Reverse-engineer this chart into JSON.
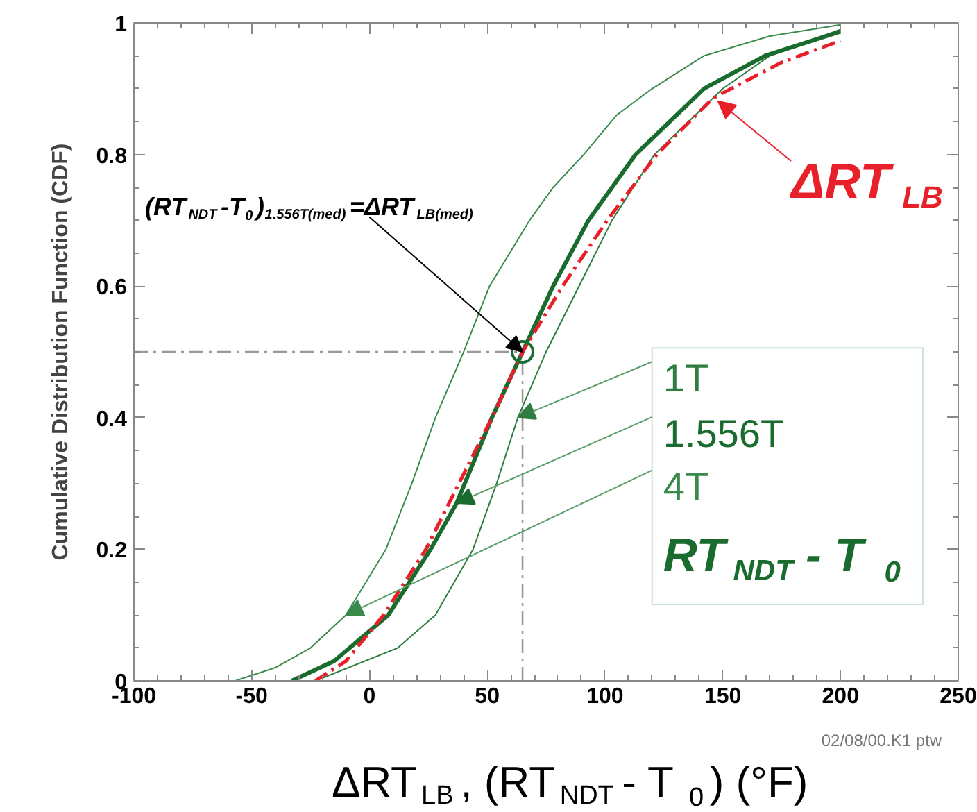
{
  "chart_data": {
    "type": "line",
    "xlabel": "ΔRT$_{LB}$, (RT$_{NDT}$ - T$_{0}$) (°F)",
    "ylabel": "Cumulative Distribution Function (CDF)",
    "xlim": [
      -100,
      250
    ],
    "xticks": [
      -100,
      -50,
      0,
      50,
      100,
      150,
      200,
      250
    ],
    "ylim": [
      0,
      1
    ],
    "yticks": [
      0,
      0.2,
      0.4,
      0.6,
      0.8,
      1
    ],
    "grid": false,
    "legend": "right",
    "series": [
      {
        "name": "1T",
        "color": "#2f7d40",
        "x": [
          -23,
          12,
          28,
          44,
          54,
          63,
          75,
          89,
          103,
          121,
          150,
          170,
          200
        ],
        "values": [
          0,
          0.05,
          0.1,
          0.2,
          0.3,
          0.4,
          0.5,
          0.6,
          0.7,
          0.8,
          0.9,
          0.95,
          0.99
        ]
      },
      {
        "name": "1.556T",
        "color": "#1a6b2e",
        "x": [
          -33,
          -15,
          8,
          26,
          37,
          52,
          65,
          78,
          93,
          113,
          142,
          168,
          200
        ],
        "values": [
          0,
          0.03,
          0.1,
          0.2,
          0.27,
          0.4,
          0.5,
          0.6,
          0.7,
          0.8,
          0.9,
          0.95,
          0.987
        ]
      },
      {
        "name": "4T",
        "color": "#3a8a4c",
        "x": [
          -57,
          -40,
          -25,
          -10,
          7,
          18,
          28,
          40,
          51,
          68,
          78,
          91,
          105,
          120,
          142,
          170,
          200
        ],
        "values": [
          0,
          0.02,
          0.05,
          0.1,
          0.2,
          0.3,
          0.4,
          0.5,
          0.6,
          0.7,
          0.75,
          0.8,
          0.86,
          0.9,
          0.95,
          0.98,
          0.997
        ]
      },
      {
        "name": "ΔRT$_{LB}$",
        "color": "#e8202a",
        "line_style": "dashed",
        "x": [
          -23,
          -10,
          6,
          24,
          38,
          52,
          65,
          82,
          101,
          122,
          146,
          175,
          200
        ],
        "values": [
          0,
          0.03,
          0.1,
          0.2,
          0.3,
          0.4,
          0.5,
          0.6,
          0.7,
          0.8,
          0.886,
          0.94,
          0.973
        ]
      }
    ],
    "ref_lines": [
      {
        "axis": "y",
        "value": 0.5,
        "color": "#999999",
        "line_style": "dashed"
      },
      {
        "axis": "x",
        "value": 65,
        "color": "#999999",
        "line_style": "dashed"
      }
    ],
    "annotations": [
      {
        "text": "(RT$_{NDT}$-T$_{0}$)$_{1.556T(med)}$=ΔRT$_{LB(med)}$",
        "x": 65,
        "y": 0.5
      },
      "RT$_{NDT}$ - T$_{0}$",
      "02/08/00.K1 ptw"
    ]
  }
}
